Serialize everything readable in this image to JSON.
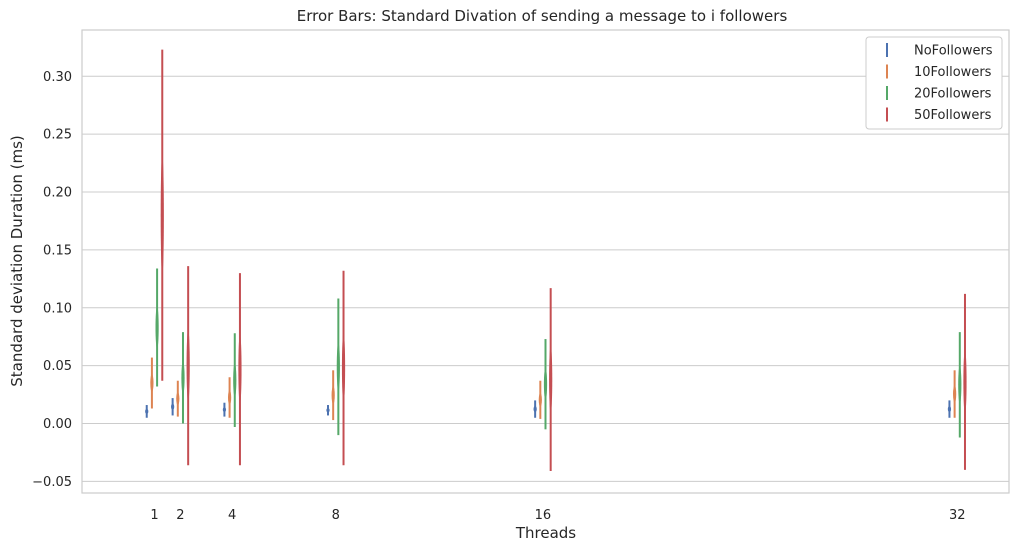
{
  "chart_data": {
    "type": "errorbar",
    "title": "Error Bars: Standard Divation of sending a message to i followers",
    "xlabel": "Threads",
    "ylabel": "Standard deviation Duration (ms)",
    "x_ticks": [
      1,
      2,
      4,
      8,
      16,
      32
    ],
    "y_ticks": [
      "−0.05",
      "0.00",
      "0.05",
      "0.10",
      "0.15",
      "0.20",
      "0.25",
      "0.30"
    ],
    "xlim": [
      -1.8,
      34
    ],
    "ylim": [
      -0.06,
      0.34
    ],
    "grid": "horizontal",
    "legend_position": "top-right",
    "series": [
      {
        "name": "NoFollowers",
        "color": "#4c72b0",
        "points": [
          {
            "x": 1,
            "center": 0.0105,
            "low": 0.005,
            "high": 0.016
          },
          {
            "x": 2,
            "center": 0.0145,
            "low": 0.007,
            "high": 0.022
          },
          {
            "x": 4,
            "center": 0.012,
            "low": 0.006,
            "high": 0.018
          },
          {
            "x": 8,
            "center": 0.0115,
            "low": 0.007,
            "high": 0.016
          },
          {
            "x": 16,
            "center": 0.0125,
            "low": 0.005,
            "high": 0.02
          },
          {
            "x": 32,
            "center": 0.0125,
            "low": 0.005,
            "high": 0.02
          }
        ]
      },
      {
        "name": "10Followers",
        "color": "#dd8452",
        "points": [
          {
            "x": 1,
            "center": 0.035,
            "low": 0.013,
            "high": 0.057
          },
          {
            "x": 2,
            "center": 0.0215,
            "low": 0.006,
            "high": 0.037
          },
          {
            "x": 4,
            "center": 0.0225,
            "low": 0.005,
            "high": 0.04
          },
          {
            "x": 8,
            "center": 0.0245,
            "low": 0.003,
            "high": 0.046
          },
          {
            "x": 16,
            "center": 0.0205,
            "low": 0.004,
            "high": 0.037
          },
          {
            "x": 32,
            "center": 0.0255,
            "low": 0.005,
            "high": 0.046
          }
        ]
      },
      {
        "name": "20Followers",
        "color": "#55a868",
        "points": [
          {
            "x": 1,
            "center": 0.083,
            "low": 0.032,
            "high": 0.134
          },
          {
            "x": 2,
            "center": 0.0395,
            "low": 0.0,
            "high": 0.079
          },
          {
            "x": 4,
            "center": 0.0375,
            "low": -0.003,
            "high": 0.078
          },
          {
            "x": 8,
            "center": 0.049,
            "low": -0.01,
            "high": 0.108
          },
          {
            "x": 16,
            "center": 0.034,
            "low": -0.005,
            "high": 0.073
          },
          {
            "x": 32,
            "center": 0.0335,
            "low": -0.012,
            "high": 0.079
          }
        ]
      },
      {
        "name": "50Followers",
        "color": "#c44e52",
        "points": [
          {
            "x": 1,
            "center": 0.18,
            "low": 0.037,
            "high": 0.323
          },
          {
            "x": 2,
            "center": 0.05,
            "low": -0.036,
            "high": 0.136
          },
          {
            "x": 4,
            "center": 0.047,
            "low": -0.036,
            "high": 0.13
          },
          {
            "x": 8,
            "center": 0.048,
            "low": -0.036,
            "high": 0.132
          },
          {
            "x": 16,
            "center": 0.038,
            "low": -0.041,
            "high": 0.117
          },
          {
            "x": 32,
            "center": 0.036,
            "low": -0.04,
            "high": 0.112
          }
        ]
      }
    ]
  }
}
